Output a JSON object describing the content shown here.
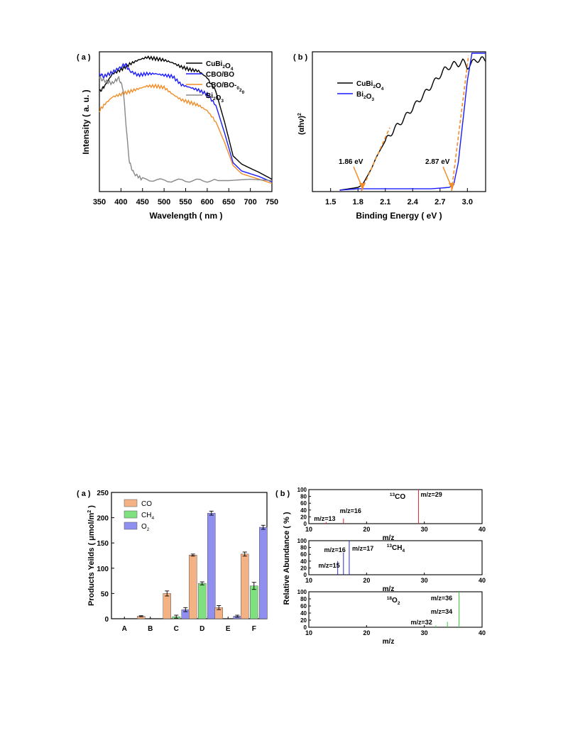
{
  "figure_top": {
    "panel_a": {
      "label": "( a )",
      "xlabel": "Wavelength ( nm )",
      "ylabel": "Intensity ( a. u. )"
    },
    "panel_b": {
      "label": "( b )",
      "xlabel": "Binding Energy ( eV )",
      "ylabel": "(αhν)",
      "ylabel_sup": "2",
      "annotation_1": "1.86 eV",
      "annotation_2": "2.87 eV"
    }
  },
  "figure_bottom": {
    "panel_a": {
      "label": "( a )",
      "ylabel": "Products Yeilds ( μmol/m",
      "ylabel_sup": "2",
      "ylabel_end": " )"
    },
    "panel_b": {
      "label": "( b )",
      "ylabel": "Relative Abundance ( % )",
      "xlabel": "m/z",
      "sub1": {
        "species": "CO",
        "iso": "13",
        "labels": [
          "m/z=13",
          "m/z=16",
          "m/z=29"
        ]
      },
      "sub2": {
        "species": "CH",
        "species_sub": "4",
        "iso": "13",
        "labels": [
          "m/z=15",
          "m/z=16",
          "m/z=17"
        ]
      },
      "sub3": {
        "species": "O",
        "species_sub": "2",
        "iso": "18",
        "labels": [
          "m/z=32",
          "m/z=34",
          "m/z=36"
        ]
      }
    }
  },
  "chart_data": [
    {
      "type": "line",
      "panel": "top-a",
      "xlabel": "Wavelength ( nm )",
      "ylabel": "Intensity ( a. u. )",
      "xlim": [
        350,
        750
      ],
      "xticks": [
        350,
        400,
        450,
        500,
        550,
        600,
        650,
        700,
        750
      ],
      "legend_position": "top-right",
      "series": [
        {
          "name": "CuBi2O4",
          "color": "#000000",
          "x": [
            350,
            360,
            380,
            400,
            420,
            440,
            460,
            480,
            500,
            520,
            540,
            560,
            580,
            600,
            620,
            640,
            660,
            680,
            700,
            720,
            750
          ],
          "y": [
            0.72,
            0.75,
            0.85,
            0.88,
            0.92,
            0.95,
            0.97,
            0.96,
            0.95,
            0.93,
            0.9,
            0.88,
            0.87,
            0.82,
            0.72,
            0.5,
            0.25,
            0.19,
            0.16,
            0.13,
            0.08
          ]
        },
        {
          "name": "CBO/BO",
          "color": "#1a1aff",
          "x": [
            350,
            360,
            380,
            400,
            410,
            420,
            440,
            460,
            480,
            500,
            520,
            540,
            560,
            580,
            600,
            620,
            640,
            660,
            680,
            700,
            720,
            750
          ],
          "y": [
            0.85,
            0.83,
            0.86,
            0.9,
            0.92,
            0.87,
            0.84,
            0.85,
            0.85,
            0.84,
            0.83,
            0.77,
            0.75,
            0.73,
            0.7,
            0.62,
            0.42,
            0.2,
            0.14,
            0.12,
            0.1,
            0.06
          ]
        },
        {
          "name": "CBO/BO-020",
          "color": "#f28c28",
          "x": [
            350,
            360,
            380,
            400,
            420,
            440,
            460,
            480,
            500,
            520,
            540,
            560,
            580,
            600,
            620,
            640,
            660,
            680,
            700,
            720,
            750
          ],
          "y": [
            0.58,
            0.62,
            0.68,
            0.7,
            0.72,
            0.74,
            0.76,
            0.76,
            0.75,
            0.7,
            0.66,
            0.64,
            0.62,
            0.58,
            0.5,
            0.35,
            0.18,
            0.12,
            0.1,
            0.08,
            0.05
          ]
        },
        {
          "name": "Bi2O3",
          "color": "#888888",
          "x": [
            350,
            360,
            380,
            395,
            405,
            410,
            415,
            420,
            430,
            450,
            500,
            550,
            600,
            650,
            700,
            750
          ],
          "y": [
            0.82,
            0.8,
            0.78,
            0.82,
            0.74,
            0.55,
            0.35,
            0.2,
            0.12,
            0.08,
            0.07,
            0.07,
            0.07,
            0.07,
            0.08,
            0.07
          ]
        }
      ]
    },
    {
      "type": "line",
      "panel": "top-b",
      "xlabel": "Binding Energy ( eV )",
      "xlim": [
        1.3,
        3.2
      ],
      "xticks": [
        1.5,
        1.8,
        2.1,
        2.4,
        2.7,
        3.0
      ],
      "legend_position": "top-left",
      "annotations": [
        "1.86 eV",
        "2.87 eV"
      ],
      "series": [
        {
          "name": "CuBi2O4",
          "color": "#000000",
          "x": [
            1.6,
            1.7,
            1.8,
            1.85,
            1.9,
            1.95,
            2.0,
            2.05,
            2.1,
            2.15,
            2.2,
            2.25,
            2.3,
            2.35,
            2.4,
            2.45,
            2.5,
            2.55,
            2.6,
            2.65,
            2.7,
            2.75,
            2.8,
            2.85,
            2.9,
            2.95,
            3.0,
            3.05,
            3.1,
            3.15,
            3.2
          ],
          "y": [
            0.0,
            0.01,
            0.02,
            0.04,
            0.1,
            0.16,
            0.24,
            0.3,
            0.36,
            0.4,
            0.45,
            0.48,
            0.52,
            0.56,
            0.6,
            0.64,
            0.68,
            0.72,
            0.76,
            0.8,
            0.84,
            0.88,
            0.9,
            0.92,
            0.92,
            0.94,
            0.9,
            0.93,
            0.95,
            0.96,
            0.94
          ]
        },
        {
          "name": "Bi2O3",
          "color": "#1a1aff",
          "x": [
            1.6,
            1.8,
            2.0,
            2.2,
            2.4,
            2.6,
            2.8,
            2.85,
            2.9,
            2.95,
            3.0,
            3.05,
            3.1,
            3.2
          ],
          "y": [
            0.0,
            0.01,
            0.01,
            0.01,
            0.01,
            0.01,
            0.02,
            0.04,
            0.2,
            0.5,
            0.8,
            1.0,
            1.0,
            1.0
          ]
        }
      ]
    },
    {
      "type": "bar",
      "panel": "bottom-a",
      "ylabel": "Products Yeilds ( μmol/m2 )",
      "ylim": [
        0,
        250
      ],
      "yticks": [
        0,
        50,
        100,
        150,
        200,
        250
      ],
      "categories": [
        "A",
        "B",
        "C",
        "D",
        "E",
        "F"
      ],
      "legend_position": "top-left",
      "series": [
        {
          "name": "CO",
          "color": "#f4b183",
          "values": [
            0,
            5,
            50,
            126,
            22,
            128
          ],
          "errors": [
            0,
            1,
            5,
            2,
            4,
            4
          ]
        },
        {
          "name": "CH4",
          "color": "#7ee07e",
          "values": [
            0,
            0,
            4,
            70,
            0,
            65
          ],
          "errors": [
            0,
            0,
            3,
            3,
            0,
            7
          ]
        },
        {
          "name": "O2",
          "color": "#8f8fef",
          "values": [
            0,
            0,
            18,
            209,
            5,
            181
          ],
          "errors": [
            0,
            0,
            4,
            4,
            2,
            4
          ]
        }
      ]
    },
    {
      "type": "bar",
      "panel": "bottom-b",
      "ylabel": "Relative Abundance ( % )",
      "xlabel": "m/z",
      "xlim": [
        10,
        40
      ],
      "xticks": [
        10,
        20,
        30,
        40
      ],
      "ylim": [
        0,
        100
      ],
      "yticks": [
        0,
        20,
        40,
        60,
        80,
        100
      ],
      "subplots": [
        {
          "name": "13CO",
          "color": "#e8212b",
          "x": [
            13,
            16,
            29
          ],
          "y": [
            5,
            15,
            100
          ]
        },
        {
          "name": "13CH4",
          "color": "#2a2ad8",
          "x": [
            15,
            16,
            17
          ],
          "y": [
            40,
            65,
            100
          ]
        },
        {
          "name": "18O2",
          "color": "#2ed12e",
          "x": [
            32,
            34,
            36
          ],
          "y": [
            5,
            15,
            100
          ]
        }
      ]
    }
  ]
}
